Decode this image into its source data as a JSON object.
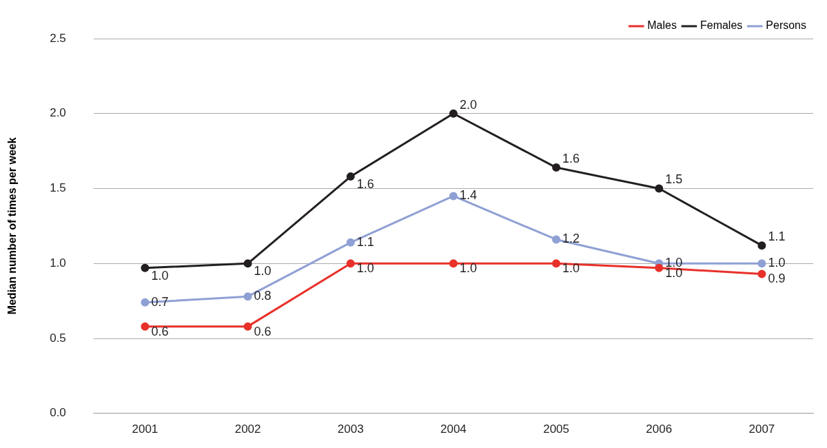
{
  "chart_data": {
    "type": "line",
    "ylabel": "Median number of times per week",
    "categories": [
      "2001",
      "2002",
      "2003",
      "2004",
      "2005",
      "2006",
      "2007"
    ],
    "series": [
      {
        "name": "Males",
        "color": "#e8312a",
        "values": [
          0.58,
          0.58,
          1.0,
          1.0,
          1.0,
          0.97,
          0.93
        ],
        "value_labels": [
          "0.6",
          "0.6",
          "1.0",
          "1.0",
          "1.0",
          "1.0",
          "0.9"
        ]
      },
      {
        "name": "Females",
        "color": "#231f20",
        "values": [
          0.97,
          1.0,
          1.58,
          2.0,
          1.64,
          1.5,
          1.12
        ],
        "value_labels": [
          "1.0",
          "1.0",
          "1.6",
          "2.0",
          "1.6",
          "1.5",
          "1.1"
        ]
      },
      {
        "name": "Persons",
        "color": "#8fa0d4",
        "values": [
          0.74,
          0.78,
          1.14,
          1.45,
          1.16,
          1.0,
          1.0
        ],
        "value_labels": [
          "0.7",
          "0.8",
          "1.1",
          "1.4",
          "1.2",
          "1.0",
          "1.0"
        ]
      }
    ],
    "ylim": [
      0,
      2.5
    ],
    "yticks": [
      {
        "value": 0,
        "label": "0.0"
      },
      {
        "value": 0.5,
        "label": "0.5"
      },
      {
        "value": 1,
        "label": "1.0"
      },
      {
        "value": 1.5,
        "label": "1.5"
      },
      {
        "value": 2,
        "label": "2.0"
      },
      {
        "value": 2.5,
        "label": "2.5"
      }
    ],
    "grid": "y",
    "legend": "top right",
    "marker": "circle",
    "line_style": "solid"
  }
}
